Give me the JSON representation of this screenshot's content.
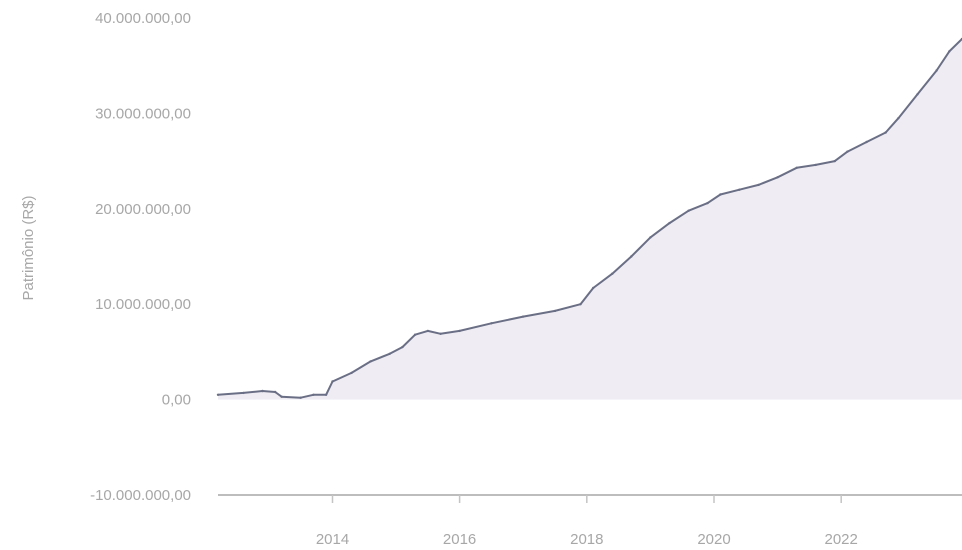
{
  "chart_data": {
    "type": "area",
    "title": "",
    "xlabel": "",
    "ylabel": "Patrimônio (R$)",
    "ylim": [
      -10000000,
      40000000
    ],
    "xlim": [
      2012.2,
      2023.9
    ],
    "grid": false,
    "y_ticks": [
      {
        "value": 40000000,
        "label": "40.000.000,00"
      },
      {
        "value": 30000000,
        "label": "30.000.000,00"
      },
      {
        "value": 20000000,
        "label": "20.000.000,00"
      },
      {
        "value": 10000000,
        "label": "10.000.000,00"
      },
      {
        "value": 0,
        "label": "0,00"
      },
      {
        "value": -10000000,
        "label": "-10.000.000,00"
      }
    ],
    "x_ticks": [
      {
        "value": 2014,
        "label": "2014"
      },
      {
        "value": 2016,
        "label": "2016"
      },
      {
        "value": 2018,
        "label": "2018"
      },
      {
        "value": 2020,
        "label": "2020"
      },
      {
        "value": 2022,
        "label": "2022"
      }
    ],
    "series": [
      {
        "color": "#6b6f86",
        "fill": "#dcd6e4",
        "points": [
          [
            2012.2,
            500000
          ],
          [
            2012.6,
            700000
          ],
          [
            2012.9,
            900000
          ],
          [
            2013.1,
            800000
          ],
          [
            2013.2,
            300000
          ],
          [
            2013.5,
            200000
          ],
          [
            2013.7,
            500000
          ],
          [
            2013.9,
            500000
          ],
          [
            2014.0,
            1900000
          ],
          [
            2014.3,
            2800000
          ],
          [
            2014.6,
            4000000
          ],
          [
            2014.9,
            4800000
          ],
          [
            2015.1,
            5500000
          ],
          [
            2015.3,
            6800000
          ],
          [
            2015.5,
            7200000
          ],
          [
            2015.7,
            6900000
          ],
          [
            2016.0,
            7200000
          ],
          [
            2016.5,
            8000000
          ],
          [
            2017.0,
            8700000
          ],
          [
            2017.5,
            9300000
          ],
          [
            2017.9,
            10000000
          ],
          [
            2018.1,
            11700000
          ],
          [
            2018.4,
            13200000
          ],
          [
            2018.7,
            15000000
          ],
          [
            2019.0,
            17000000
          ],
          [
            2019.3,
            18500000
          ],
          [
            2019.6,
            19800000
          ],
          [
            2019.9,
            20600000
          ],
          [
            2020.1,
            21500000
          ],
          [
            2020.4,
            22000000
          ],
          [
            2020.7,
            22500000
          ],
          [
            2021.0,
            23300000
          ],
          [
            2021.3,
            24300000
          ],
          [
            2021.6,
            24600000
          ],
          [
            2021.9,
            25000000
          ],
          [
            2022.1,
            26000000
          ],
          [
            2022.4,
            27000000
          ],
          [
            2022.7,
            28000000
          ],
          [
            2022.9,
            29500000
          ],
          [
            2023.2,
            32000000
          ],
          [
            2023.5,
            34500000
          ],
          [
            2023.7,
            36500000
          ],
          [
            2023.9,
            37800000
          ]
        ]
      }
    ]
  }
}
